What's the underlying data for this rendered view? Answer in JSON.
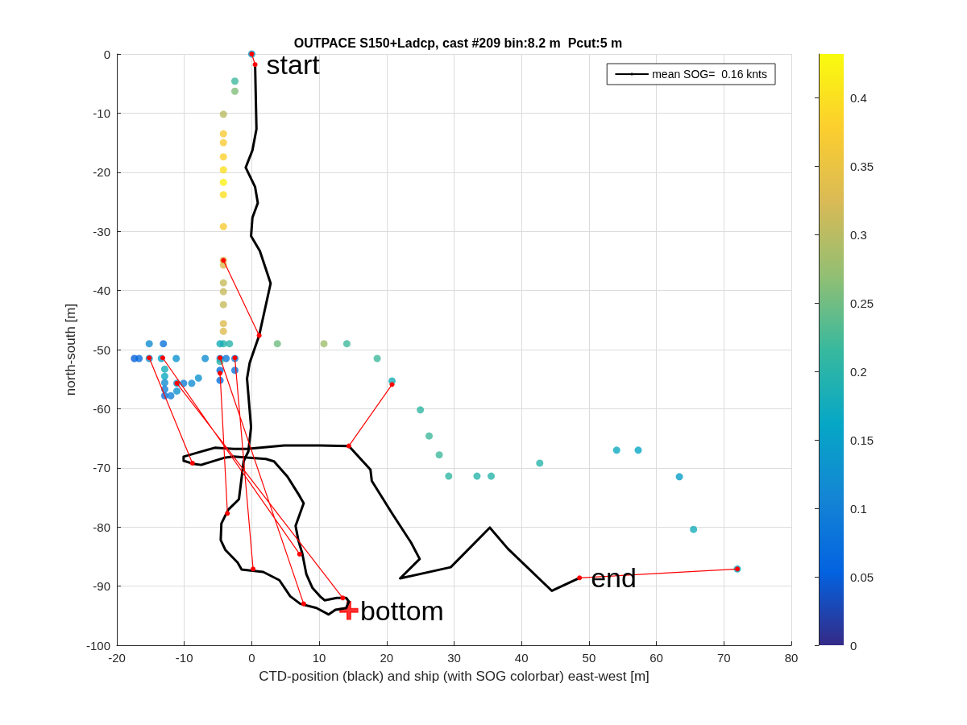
{
  "chart_data": {
    "type": "scatter",
    "title": "OUTPACE S150+Ladcp, cast #209 bin:8.2 m  Pcut:5 m",
    "xlabel": "CTD-position (black) and ship (with SOG colorbar) east-west [m]",
    "ylabel": "north-south [m]",
    "xlim": [
      -20,
      80
    ],
    "xticks": [
      -20,
      -10,
      0,
      10,
      20,
      30,
      40,
      50,
      60,
      70,
      80
    ],
    "ylim": [
      -100,
      0
    ],
    "yticks": [
      -100,
      -90,
      -80,
      -70,
      -60,
      -50,
      -40,
      -30,
      -20,
      -10,
      0
    ],
    "grid": true,
    "legend": "top right",
    "clim": [
      0,
      0.432
    ],
    "cticks": [
      0,
      0.05,
      0.1,
      0.15,
      0.2,
      0.25,
      0.3,
      0.35,
      0.4
    ],
    "annotations": [
      {
        "text": "start",
        "x": 0.5,
        "y": -1.8
      },
      {
        "text": "bottom",
        "x": 14.4,
        "y": -94.1
      },
      {
        "text": "end",
        "x": 48.6,
        "y": -88.6
      }
    ],
    "series": [
      {
        "marker": "circle",
        "x": [
          0,
          -2.5,
          -2.5,
          -4.2,
          -4.2,
          -4.2,
          -4.2,
          -4.2,
          -4.2,
          -4.2,
          -4.2,
          -4.2,
          -4.2,
          -4.2,
          -4.2,
          -4.2,
          -4.2,
          -4.2,
          -4.2,
          -15.2,
          -13.1,
          -4.7,
          -3.3,
          3.8,
          10.7,
          14.1,
          -17.4,
          -16.7,
          -15.2,
          -13.4,
          -11.2,
          -6.9,
          -4.7,
          -3.8,
          -2.5,
          18.6,
          -12.9,
          -12.9,
          -12.9,
          -12.9,
          -12.9,
          -12,
          -11.1,
          -10.1,
          -8.9,
          -7.9,
          -11.1,
          -4.7,
          -4.7,
          -4.7,
          -2.5,
          20.8,
          25,
          26.3,
          27.8,
          29.2,
          33.4,
          35.5,
          42.7,
          54.1,
          57.3,
          63.4,
          65.5,
          72
        ],
        "values": [
          0,
          -4.6,
          -6.3,
          -10.2,
          -13.5,
          -15,
          -17.4,
          -19.6,
          -21.7,
          -23.8,
          -29.2,
          -34.9,
          -35.7,
          -38.7,
          -40.2,
          -42.4,
          -45.6,
          -46.9,
          -49,
          -49,
          -49,
          -49,
          -49,
          -49,
          -49,
          -49,
          -51.5,
          -51.5,
          -51.5,
          -51.5,
          -51.5,
          -51.5,
          -51.5,
          -51.5,
          -51.5,
          -51.5,
          -53.3,
          -54.5,
          -55.6,
          -56.7,
          -57.8,
          -57.8,
          -55.7,
          -55.7,
          -55.7,
          -54.8,
          -57,
          -52,
          -53.5,
          -55.2,
          -53.5,
          -55.3,
          -60.2,
          -64.6,
          -67.8,
          -71.4,
          -71.4,
          -71.4,
          -69.2,
          -67,
          -67,
          -71.5,
          -80.4,
          -87.1
        ],
        "colors": [
          "#099fc9",
          "#3fb99b",
          "#81be7a",
          "#b9bc63",
          "#f7cb34",
          "#f7cb34",
          "#fcd02d",
          "#fbe021",
          "#faf115",
          "#fbe021",
          "#f7cb34",
          "#ddbc52",
          "#ddbc52",
          "#c7bb5e",
          "#c7bb5e",
          "#c7bb5e",
          "#ddbc52",
          "#ddbc52",
          "#29b4aa",
          "#118dd1",
          "#0b73db",
          "#17adb9",
          "#29b4aa",
          "#71bd82",
          "#9fbe6e",
          "#3fb99b",
          "#075fda",
          "#086ddd",
          "#0e93ce",
          "#099fc9",
          "#0e93ce",
          "#118dd1",
          "#1280d6",
          "#0e7ad8",
          "#1280d6",
          "#3fb99b",
          "#17adb9",
          "#0daac0",
          "#118dd1",
          "#1280d6",
          "#0b73db",
          "#1280d6",
          "#0e93ce",
          "#1280d6",
          "#118dd1",
          "#0e93ce",
          "#0e93ce",
          "#29b4aa",
          "#086ddd",
          "#086ddd",
          "#0b73db",
          "#17adb9",
          "#32b7a2",
          "#3fb99b",
          "#3fb99b",
          "#32b7a2",
          "#29b4aa",
          "#29b4aa",
          "#29b4aa",
          "#0daac0",
          "#06a6c6",
          "#099fc9",
          "#17adb9",
          "#0daac0"
        ]
      },
      {
        "type": "line",
        "name": "mean SOG=  0.16 knts",
        "color": "#000000",
        "marker": "none",
        "x": [
          0.5,
          0.7,
          0.1,
          -0.9,
          0.5,
          0.9,
          0.1,
          -0.1,
          1.2,
          2.8,
          1.1,
          -0.3,
          -0.7,
          -0.1,
          -0.5,
          -1.2,
          -1.9,
          -3.5,
          -4.5,
          -4.6,
          -3.9,
          -2.1,
          -1.5,
          1.7,
          4.1,
          5.7,
          7.2,
          9.6,
          11.4,
          12.4,
          14,
          14.4,
          14,
          12.6,
          10.8,
          10.1,
          9,
          8.1,
          7.5,
          6.9,
          6.5,
          7.7,
          6.9,
          5.3,
          3.3,
          2.1,
          -2.7,
          -4.1,
          -7.5,
          -8.7,
          -10.1,
          -10.1,
          -5.5,
          -2.7,
          -0.7,
          4.8,
          10.1,
          14.4,
          17.6,
          17.8,
          20.8,
          23.6,
          24.9,
          22,
          29.5,
          35.3,
          38,
          44.5,
          48.6
        ],
        "values": [
          -1.8,
          -12.7,
          -16.3,
          -19.2,
          -22.5,
          -25.2,
          -27.7,
          -30.8,
          -33.3,
          -38.8,
          -47.6,
          -52.2,
          -54.9,
          -63.1,
          -67.2,
          -68.9,
          -75.3,
          -77.1,
          -79.4,
          -82.2,
          -83.9,
          -86,
          -87.2,
          -87.6,
          -89,
          -91.7,
          -93,
          -93.7,
          -94.8,
          -94,
          -93.7,
          -92.6,
          -92,
          -92,
          -92.4,
          -91.7,
          -90.3,
          -88,
          -84.5,
          -82.2,
          -79.8,
          -76,
          -74.4,
          -71.5,
          -68.9,
          -68.5,
          -68.1,
          -68.3,
          -69.5,
          -69.3,
          -68.8,
          -68.1,
          -66.6,
          -66.8,
          -66.8,
          -66.2,
          -66.2,
          -66.3,
          -70.3,
          -72.2,
          -77.7,
          -82.6,
          -85.4,
          -88.7,
          -86.8,
          -80.1,
          -83.7,
          -90.8,
          -88.6
        ]
      },
      {
        "type": "line",
        "color": "#ff0000",
        "marker": "circle",
        "x": [
          0.5,
          0,
          null,
          1.1,
          -4.2,
          null,
          14.4,
          20.8,
          null,
          -8.8,
          -15.2,
          null,
          -3.6,
          -4.7,
          null,
          0.2,
          -2.5,
          null,
          7.1,
          -13.2,
          null,
          7.7,
          -4.7,
          null,
          13.5,
          -11.1,
          null,
          48.6,
          72
        ],
        "values": [
          -1.8,
          0,
          null,
          -47.6,
          -34.9,
          null,
          -66.3,
          -55.9,
          null,
          -69.2,
          -51.4,
          null,
          -77.7,
          -54,
          null,
          -87.1,
          -51.4,
          null,
          -84.6,
          -51.4,
          null,
          -93,
          -51.4,
          null,
          -92,
          -55.7,
          null,
          -88.6,
          -87.1
        ]
      },
      {
        "color": "#ff0000",
        "marker": "cross",
        "x": [
          14.4
        ],
        "values": [
          -94.1
        ]
      }
    ]
  }
}
